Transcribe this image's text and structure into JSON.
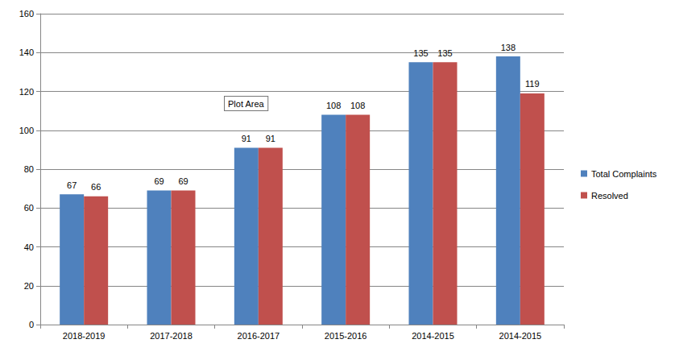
{
  "chart_data": {
    "type": "bar",
    "categories": [
      "2018-2019",
      "2017-2018",
      "2016-2017",
      "2015-2016",
      "2014-2015",
      "2014-2015"
    ],
    "series": [
      {
        "name": "Total Complaints",
        "color": "#4f81bd",
        "values": [
          67,
          69,
          91,
          108,
          135,
          138
        ]
      },
      {
        "name": "Resolved",
        "color": "#c0504d",
        "values": [
          66,
          69,
          91,
          108,
          135,
          119
        ]
      }
    ],
    "ylim": [
      0,
      160
    ],
    "yticks": [
      0,
      20,
      40,
      60,
      80,
      100,
      120,
      140,
      160
    ],
    "grid": true,
    "legend": "right",
    "data_labels": true,
    "annotation": "Plot Area"
  }
}
